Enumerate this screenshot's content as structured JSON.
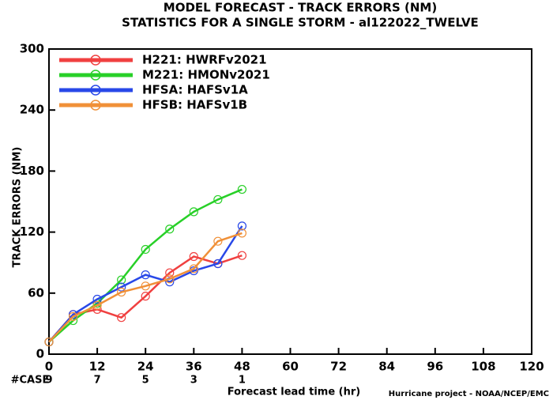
{
  "chart_data": {
    "type": "line",
    "title": "MODEL FORECAST - TRACK ERRORS (NM)",
    "subtitle": "STATISTICS FOR A SINGLE STORM - al122022_TWELVE",
    "x_label": "Forecast lead time (hr)",
    "y_label": "TRACK ERRORS (NM)",
    "x": [
      0,
      6,
      12,
      18,
      24,
      30,
      36,
      42,
      48
    ],
    "series": [
      {
        "name": "H221: HWRFv2021",
        "color": "#f04040",
        "values": [
          12,
          39,
          44,
          36,
          57,
          80,
          96,
          89,
          97
        ]
      },
      {
        "name": "M221: HMONv2021",
        "color": "#28d028",
        "values": [
          12,
          33,
          50,
          73,
          103,
          123,
          140,
          152,
          162
        ]
      },
      {
        "name": "HFSA: HAFSv1A",
        "color": "#2848e8",
        "values": [
          12,
          39,
          54,
          66,
          78,
          71,
          82,
          89,
          126
        ]
      },
      {
        "name": "HFSB: HAFSv1B",
        "color": "#f09038",
        "values": [
          12,
          37,
          48,
          61,
          67,
          74,
          84,
          111,
          119
        ]
      }
    ],
    "xlim": [
      0,
      120
    ],
    "xticks": [
      0,
      12,
      24,
      36,
      48,
      60,
      72,
      84,
      96,
      108,
      120
    ],
    "ylim": [
      0,
      300
    ],
    "yticks": [
      0,
      60,
      120,
      180,
      240,
      300
    ],
    "case_label": "#CASE",
    "case_x": [
      0,
      12,
      24,
      36,
      48
    ],
    "case_counts": [
      9,
      7,
      5,
      3,
      1
    ],
    "case_color": "#20b8c8",
    "footer": "Hurricane project - NOAA/NCEP/EMC"
  }
}
